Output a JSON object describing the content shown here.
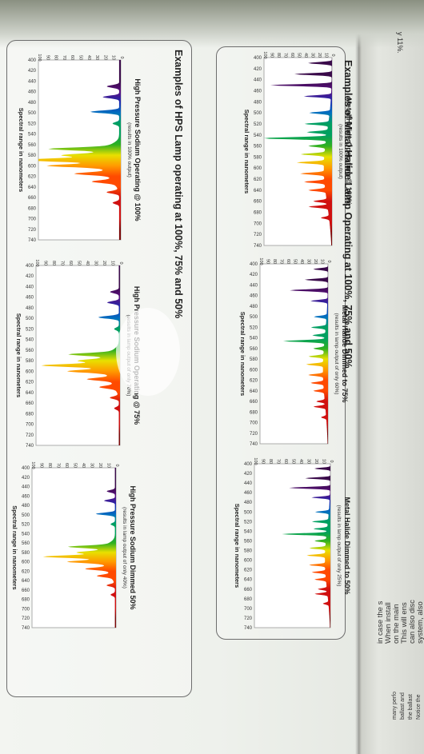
{
  "sections": [
    {
      "title": "Examples of Metal Halide Lamp Operating at 100%, 75% and 50%"
    },
    {
      "title": "Examples of HPS Lamp operating at 100%, 75% and 50%"
    }
  ],
  "charts": [
    {
      "title": "Metal Halide Operating @ 100%",
      "subtitle": "(results in 100% output)",
      "xlabel": "Spectral range in nanometers"
    },
    {
      "title": "Metal Halide Dimmed to 75%",
      "subtitle": "(results in lamp output of only 60%)",
      "xlabel": "Spectral range in nanometers"
    },
    {
      "title": "Metal Halide Dimmed to 50%",
      "subtitle": "(results in lamp output of only 25%)",
      "xlabel": "Spectral range in nanometers"
    },
    {
      "title": "High Pressure Sodium Operating @ 100%",
      "subtitle": "(results in 100% output)",
      "xlabel": "Spectral range in nanometers"
    },
    {
      "title": "High Pressure Sodium Operating @ 75%",
      "subtitle": "(results in lamp output of only 70%)",
      "xlabel": "Spectral range in nanometers"
    },
    {
      "title": "High Pressure Sodium Dimmed 50%",
      "subtitle": "(results in lamp output of only 40%)",
      "xlabel": "Spectral range in nanometers"
    }
  ],
  "axes": {
    "y_ticks": [
      "100",
      "90",
      "80",
      "70",
      "60",
      "50",
      "40",
      "30",
      "20",
      "10",
      "0"
    ],
    "x_ticks": [
      "400",
      "420",
      "440",
      "460",
      "480",
      "500",
      "520",
      "540",
      "560",
      "580",
      "600",
      "620",
      "640",
      "660",
      "680",
      "700",
      "720",
      "740"
    ]
  },
  "side_page": {
    "lines": [
      "system, also",
      "can also disc",
      "This will ens",
      "on the main",
      "When install",
      "in case the s"
    ],
    "lines2": [
      "Notice the",
      "the ballast",
      "ballast and",
      "many perfo"
    ],
    "top_fragment": "y 11%."
  }
}
